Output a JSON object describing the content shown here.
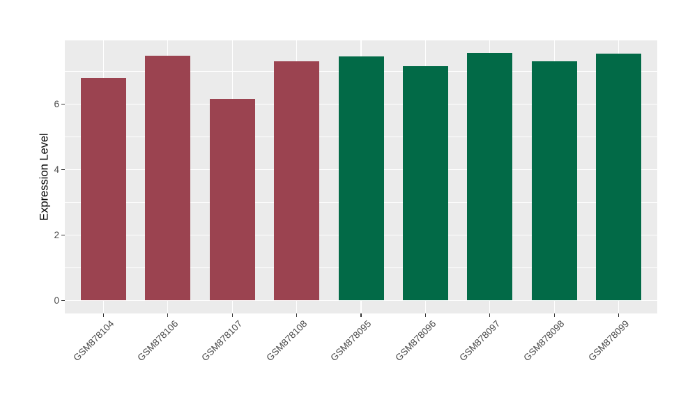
{
  "colors": {
    "figure_bg": "#ffffff",
    "panel_bg": "#ebebeb",
    "gridline": "#ffffff",
    "axis_text": "#4a4a4a",
    "axis_title": "#000000",
    "tick_mark": "#333333",
    "bar_maroon": "#9b4350",
    "bar_green": "#026a47"
  },
  "chart_data": {
    "type": "bar",
    "title": "",
    "xlabel": "",
    "ylabel": "Expression Level",
    "categories": [
      "GSM878104",
      "GSM878106",
      "GSM878107",
      "GSM878108",
      "GSM878095",
      "GSM878096",
      "GSM878097",
      "GSM878098",
      "GSM878099"
    ],
    "values": [
      6.8,
      7.48,
      6.15,
      7.31,
      7.45,
      7.16,
      7.57,
      7.31,
      7.55
    ],
    "bar_colors": [
      "#9b4350",
      "#9b4350",
      "#9b4350",
      "#9b4350",
      "#026a47",
      "#026a47",
      "#026a47",
      "#026a47",
      "#026a47"
    ],
    "yticks": [
      0,
      2,
      4,
      6
    ],
    "ytick_labels": [
      "0",
      "2",
      "4",
      "6"
    ],
    "yticks_minor": [
      1,
      3,
      5,
      7
    ],
    "ylim": [
      -0.4,
      7.96
    ],
    "grid": "major-and-minor-white-on-gray",
    "legend": "none",
    "x_tick_rotation_deg": 45
  }
}
